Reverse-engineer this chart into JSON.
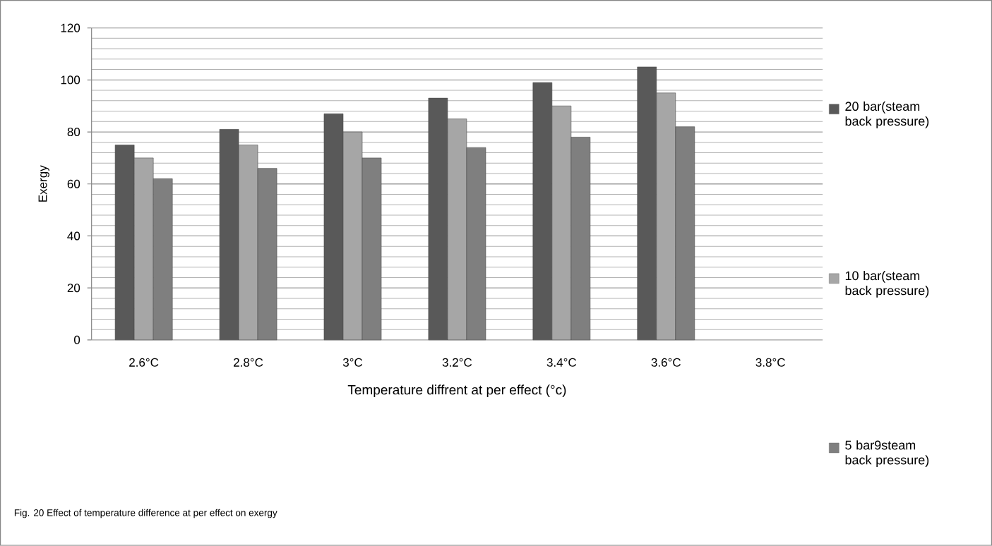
{
  "chart_data": {
    "type": "bar",
    "xlabel": "Temperature diffrent at per effect (°c)",
    "ylabel": "Exergy",
    "annotations": [
      "Fig. 20 Effect of temperature difference at per effect on exergy"
    ],
    "categories": [
      "2.6°C",
      "2.8°C",
      "3°C",
      "3.2°C",
      "3.4°C",
      "3.6°C",
      "3.8°C"
    ],
    "series": [
      {
        "name": "20 bar(steam back pressure)",
        "color": "#595959",
        "values": [
          75,
          81,
          87,
          93,
          99,
          105,
          null
        ]
      },
      {
        "name": "10 bar(steam back pressure)",
        "color": "#a6a6a6",
        "values": [
          70,
          75,
          80,
          85,
          90,
          95,
          null
        ]
      },
      {
        "name": "5 bar9steam back pressure)",
        "color": "#7f7f7f",
        "values": [
          62,
          66,
          70,
          74,
          78,
          82,
          null
        ]
      }
    ],
    "ylim": [
      0,
      120
    ],
    "yticks": [
      0,
      20,
      40,
      60,
      80,
      100,
      120
    ],
    "grid": "y",
    "legend": "right"
  }
}
